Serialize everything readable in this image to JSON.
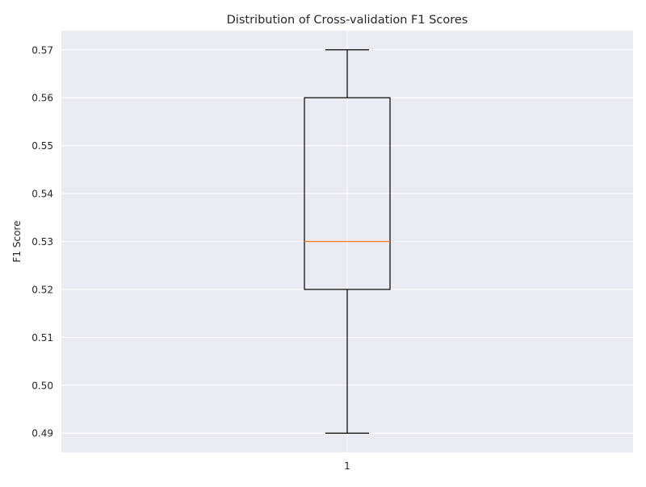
{
  "chart_data": {
    "type": "boxplot",
    "title": "Distribution of Cross-validation F1 Scores",
    "xlabel": "",
    "ylabel": "F1 Score",
    "categories": [
      "1"
    ],
    "boxes": [
      {
        "category": "1",
        "whisker_low": 0.49,
        "q1": 0.52,
        "median": 0.53,
        "q3": 0.56,
        "whisker_high": 0.57
      }
    ],
    "ylim": [
      0.486,
      0.574
    ],
    "yticks": [
      "0.49",
      "0.50",
      "0.51",
      "0.52",
      "0.53",
      "0.54",
      "0.55",
      "0.56",
      "0.57"
    ],
    "grid": true,
    "colors": {
      "background": "#eaeaf2",
      "grid": "#ffffff",
      "box": "#000000",
      "median": "#ff7f0e"
    }
  }
}
